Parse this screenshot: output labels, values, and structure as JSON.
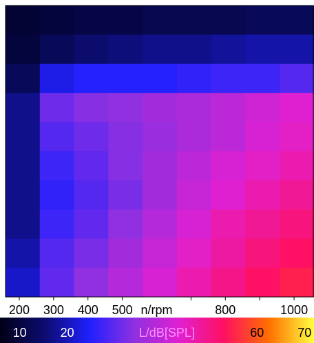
{
  "chart_data": {
    "type": "heatmap",
    "xlabel": "n/rpm",
    "xlim": [
      160,
      1058
    ],
    "xticks": [
      200,
      300,
      400,
      500,
      800,
      1000
    ],
    "xminorticks": [
      700,
      900
    ],
    "xlabel_at": 600,
    "z": [
      [
        10,
        11,
        12,
        12,
        13,
        13,
        13,
        14,
        14
      ],
      [
        11,
        14,
        16,
        17,
        18,
        18,
        19,
        20,
        20
      ],
      [
        14,
        24,
        26,
        26,
        26,
        27,
        28,
        28,
        30
      ],
      [
        18,
        32,
        34,
        35,
        37,
        38,
        40,
        42,
        44
      ],
      [
        18,
        30,
        32,
        34,
        36,
        38,
        40,
        43,
        45
      ],
      [
        18,
        28,
        31,
        34,
        37,
        40,
        43,
        45,
        47
      ],
      [
        18,
        27,
        30,
        33,
        37,
        41,
        44,
        47,
        49
      ],
      [
        18,
        28,
        31,
        35,
        39,
        43,
        47,
        49,
        51
      ],
      [
        20,
        30,
        33,
        37,
        41,
        45,
        48,
        51,
        53
      ],
      [
        22,
        31,
        35,
        39,
        43,
        47,
        50,
        53,
        55
      ]
    ],
    "colormap": [
      "#000018",
      "#0c0c70",
      "#2020ff",
      "#9030e0",
      "#e020d0",
      "#ff1060",
      "#ff7000",
      "#ffff40"
    ],
    "clim": [
      7,
      72
    ],
    "cticks": [
      10,
      20,
      60,
      70
    ],
    "clabel": "L/dB[SPL]",
    "clabel_at": 41
  }
}
